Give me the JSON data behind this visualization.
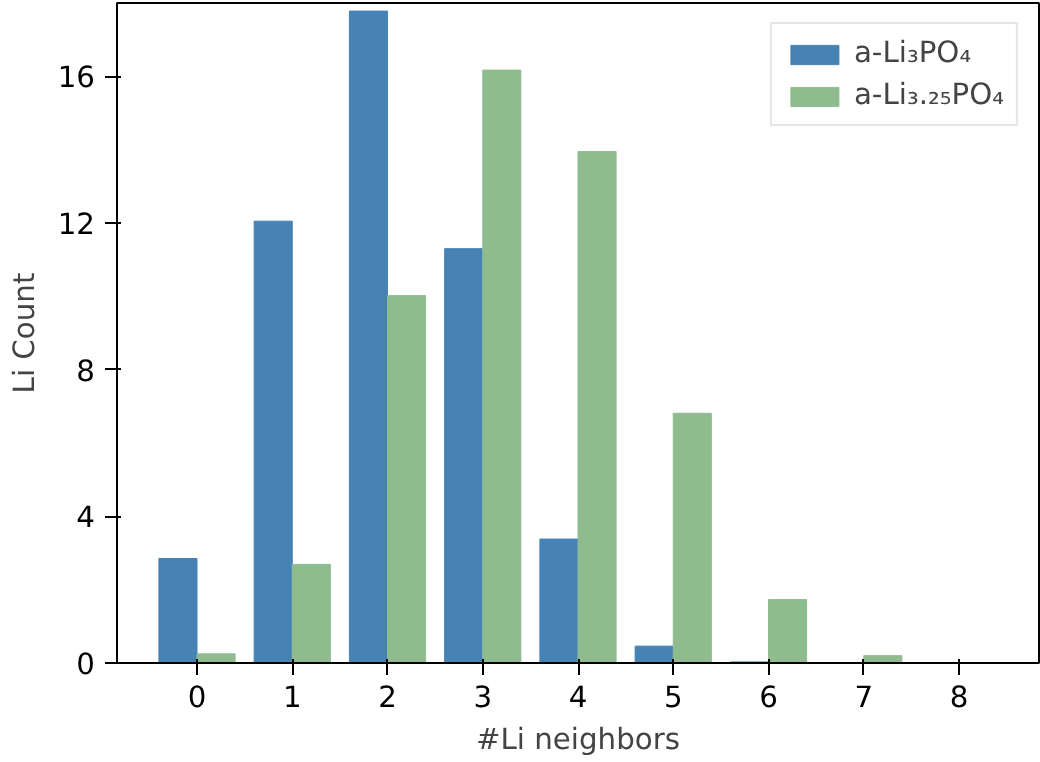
{
  "chart_data": {
    "type": "bar",
    "xlabel": "#Li neighbors",
    "ylabel": "Li Count",
    "x": [
      0,
      1,
      2,
      3,
      4,
      5,
      6,
      7,
      8
    ],
    "series": [
      {
        "name": "a-Li₃PO₄",
        "color": "#4682b4",
        "values": [
          2.85,
          12.05,
          17.78,
          11.3,
          3.38,
          0.46,
          0.03,
          0,
          0
        ]
      },
      {
        "name": "a-Li₃.₂₅PO₄",
        "color": "#8fbc8f",
        "values": [
          0.25,
          2.69,
          10.02,
          16.17,
          13.95,
          6.81,
          1.73,
          0.2,
          0
        ]
      }
    ],
    "xlim": [
      -0.84,
      8.84
    ],
    "xticks": [
      0,
      1,
      2,
      3,
      4,
      5,
      6,
      7,
      8
    ],
    "ylim": [
      0,
      18
    ],
    "yticks": [
      0,
      4,
      8,
      12,
      16
    ],
    "grid": false,
    "legend": "top right"
  }
}
